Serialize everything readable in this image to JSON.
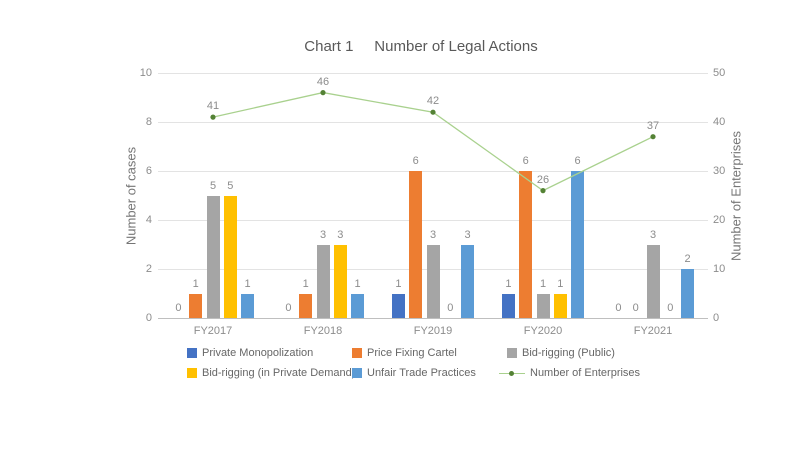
{
  "title": "Chart 1     Number of Legal Actions",
  "chart_data": {
    "type": "combo",
    "categories": [
      "FY2017",
      "FY2018",
      "FY2019",
      "FY2020",
      "FY2021"
    ],
    "series": [
      {
        "name": "Private Monopolization",
        "type": "bar",
        "color": "#4472C4",
        "axis": "left",
        "values": [
          0,
          0,
          1,
          1,
          0
        ]
      },
      {
        "name": "Price Fixing Cartel",
        "type": "bar",
        "color": "#ED7D31",
        "axis": "left",
        "values": [
          1,
          1,
          6,
          6,
          0
        ]
      },
      {
        "name": "Bid-rigging (Public)",
        "type": "bar",
        "color": "#A5A5A5",
        "axis": "left",
        "values": [
          5,
          3,
          3,
          1,
          3
        ]
      },
      {
        "name": "Bid-rigging (in Private Demand)",
        "type": "bar",
        "color": "#FFC000",
        "axis": "left",
        "values": [
          5,
          3,
          0,
          1,
          0
        ]
      },
      {
        "name": "Unfair Trade Practices",
        "type": "bar",
        "color": "#5B9BD5",
        "axis": "left",
        "values": [
          1,
          1,
          3,
          6,
          2
        ]
      },
      {
        "name": "Number of Enterprises",
        "type": "line",
        "color": "#A9D18E",
        "marker_color": "#548235",
        "axis": "right",
        "values": [
          41,
          46,
          42,
          26,
          37
        ]
      }
    ],
    "left_axis": {
      "title": "Number of cases",
      "min": 0,
      "max": 10,
      "ticks": [
        0,
        2,
        4,
        6,
        8,
        10
      ]
    },
    "right_axis": {
      "title": "Number of Enterprises",
      "min": 0,
      "max": 50,
      "ticks": [
        0,
        10,
        20,
        30,
        40,
        50
      ]
    },
    "grid": true,
    "legend_position": "bottom",
    "data_labels": true
  }
}
